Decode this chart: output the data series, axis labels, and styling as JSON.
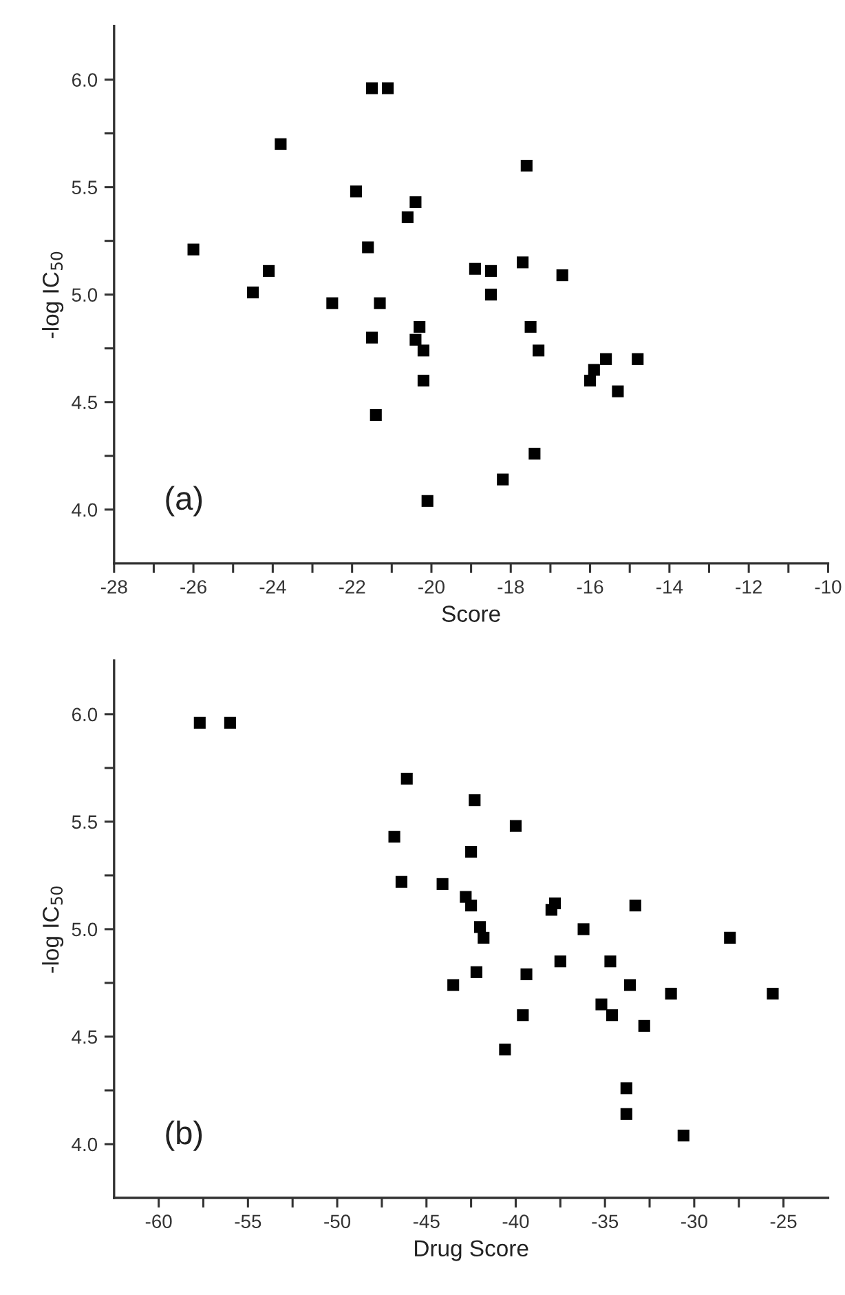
{
  "chart_data": [
    {
      "type": "scatter",
      "xlabel": "Score",
      "ylabel": "-log IC$_{50}$",
      "annotations": [
        "(a)"
      ],
      "marker": "square",
      "grid": false,
      "legend": false,
      "xlim": [
        -28,
        -10
      ],
      "ylim": [
        3.75,
        6.25
      ],
      "xticks": [
        -28,
        {
          "value": -27,
          "label": null
        },
        -26,
        {
          "value": -25,
          "label": null
        },
        -24,
        {
          "value": -23,
          "label": null
        },
        -22,
        {
          "value": -21,
          "label": null
        },
        -20,
        {
          "value": -19,
          "label": null
        },
        -18,
        {
          "value": -17,
          "label": null
        },
        -16,
        {
          "value": -15,
          "label": null
        },
        -14,
        {
          "value": -13,
          "label": null
        },
        -12,
        {
          "value": -11,
          "label": null
        },
        -10
      ],
      "yticks": [
        {
          "value": 4,
          "label": "4.0"
        },
        {
          "value": 4.25,
          "label": null
        },
        {
          "value": 4.5,
          "label": "4.5"
        },
        {
          "value": 4.75,
          "label": null
        },
        {
          "value": 5,
          "label": "5.0"
        },
        {
          "value": 5.25,
          "label": null
        },
        {
          "value": 5.5,
          "label": "5.5"
        },
        {
          "value": 5.75,
          "label": null
        },
        {
          "value": 6,
          "label": "6.0"
        }
      ],
      "series": [
        {
          "color": "#000000",
          "x": [
            -26.0,
            -24.5,
            -24.1,
            -23.8,
            -22.5,
            -21.9,
            -21.6,
            -21.5,
            -21.5,
            -21.4,
            -21.3,
            -21.1,
            -20.6,
            -20.4,
            -20.4,
            -20.3,
            -20.2,
            -20.2,
            -20.1,
            -18.9,
            -18.5,
            -18.5,
            -18.2,
            -17.7,
            -17.6,
            -17.5,
            -17.4,
            -17.3,
            -16.7,
            -16.0,
            -15.9,
            -15.6,
            -15.3,
            -14.8
          ],
          "values": [
            5.21,
            5.01,
            5.11,
            5.7,
            4.96,
            5.48,
            5.22,
            5.96,
            4.8,
            4.44,
            4.96,
            5.96,
            5.36,
            5.43,
            4.79,
            4.85,
            4.74,
            4.6,
            4.04,
            5.12,
            5.11,
            5.0,
            4.14,
            5.15,
            5.6,
            4.85,
            4.26,
            4.74,
            5.09,
            4.6,
            4.65,
            4.7,
            4.55,
            4.7
          ]
        }
      ]
    },
    {
      "type": "scatter",
      "xlabel": "Drug Score",
      "ylabel": "-log IC$_{50}$",
      "annotations": [
        "(b)"
      ],
      "marker": "square",
      "grid": false,
      "legend": false,
      "xlim": [
        -62.5,
        -22.5
      ],
      "ylim": [
        3.75,
        6.25
      ],
      "xticks": [
        -60,
        {
          "value": -57.5,
          "label": null
        },
        -55,
        {
          "value": -52.5,
          "label": null
        },
        -50,
        {
          "value": -47.5,
          "label": null
        },
        -45,
        {
          "value": -42.5,
          "label": null
        },
        -40,
        {
          "value": -37.5,
          "label": null
        },
        -35,
        {
          "value": -32.5,
          "label": null
        },
        -30,
        {
          "value": -27.5,
          "label": null
        },
        -25
      ],
      "yticks": [
        {
          "value": 4,
          "label": "4.0"
        },
        {
          "value": 4.25,
          "label": null
        },
        {
          "value": 4.5,
          "label": "4.5"
        },
        {
          "value": 4.75,
          "label": null
        },
        {
          "value": 5,
          "label": "5.0"
        },
        {
          "value": 5.25,
          "label": null
        },
        {
          "value": 5.5,
          "label": "5.5"
        },
        {
          "value": 5.75,
          "label": null
        },
        {
          "value": 6,
          "label": "6.0"
        }
      ],
      "series": [
        {
          "color": "#000000",
          "x": [
            -57.7,
            -56.0,
            -46.8,
            -46.4,
            -46.1,
            -44.1,
            -43.5,
            -42.8,
            -42.5,
            -42.5,
            -42.3,
            -42.2,
            -42.0,
            -41.8,
            -40.6,
            -40.0,
            -39.6,
            -39.4,
            -38.0,
            -37.8,
            -37.5,
            -36.2,
            -35.2,
            -34.7,
            -34.6,
            -33.8,
            -33.8,
            -33.6,
            -33.3,
            -32.8,
            -31.3,
            -30.6,
            -28.0,
            -25.6
          ],
          "values": [
            5.96,
            5.96,
            5.43,
            5.22,
            5.7,
            5.21,
            4.74,
            5.15,
            5.36,
            5.11,
            5.6,
            4.8,
            5.01,
            4.96,
            4.44,
            5.48,
            4.6,
            4.79,
            5.09,
            5.12,
            4.85,
            5.0,
            4.65,
            4.85,
            4.6,
            4.26,
            4.14,
            4.74,
            5.11,
            4.55,
            4.7,
            4.04,
            4.96,
            4.7
          ]
        }
      ]
    }
  ]
}
